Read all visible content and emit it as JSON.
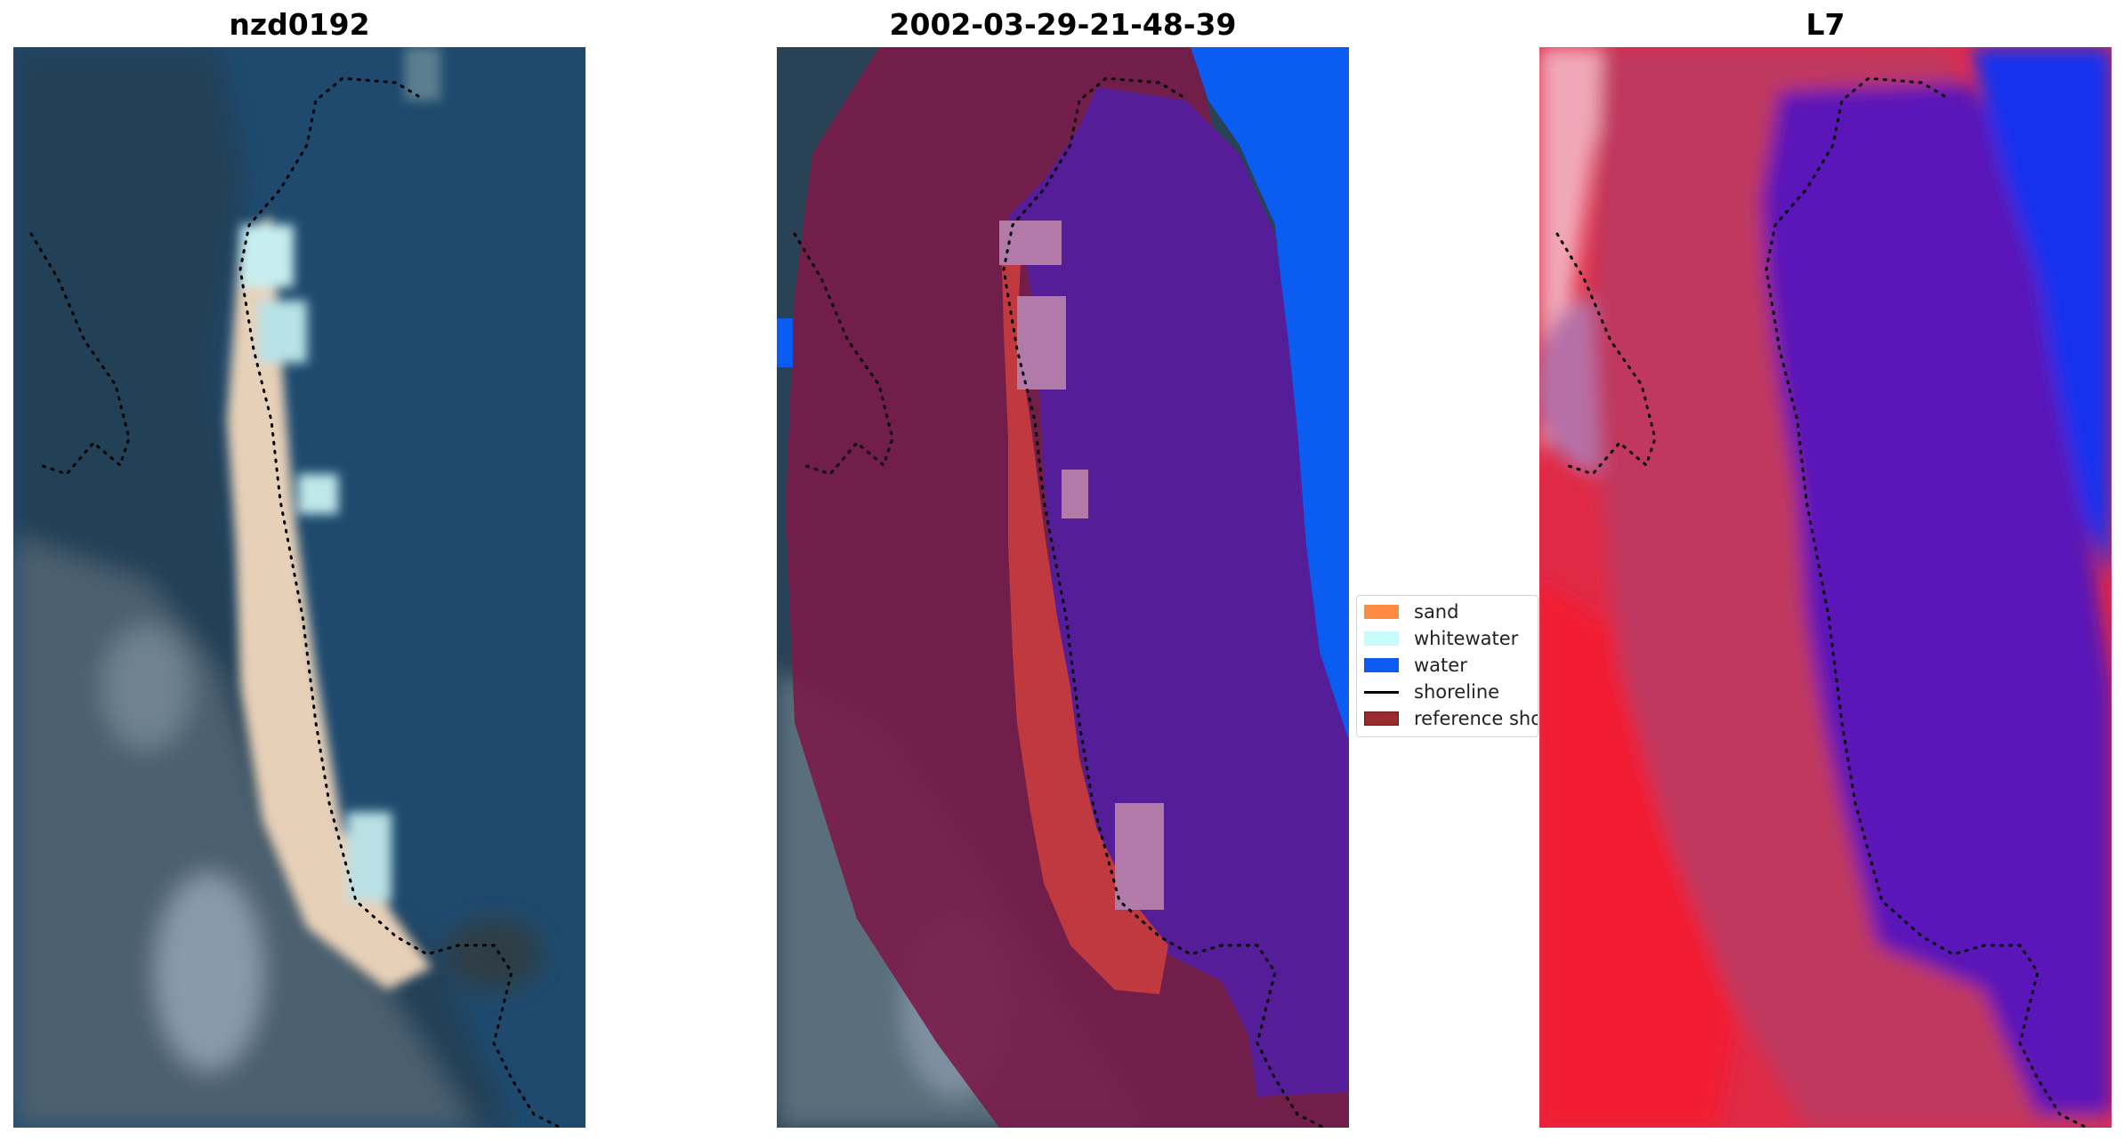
{
  "panels": {
    "left_title": "nzd0192",
    "middle_title": "2002-03-29-21-48-39",
    "right_title": "L7"
  },
  "legend": {
    "items": [
      {
        "label": "sand",
        "kind": "patch",
        "color": "#ff8c42"
      },
      {
        "label": "whitewater",
        "kind": "patch",
        "color": "#c8fbfb"
      },
      {
        "label": "water",
        "kind": "patch",
        "color": "#0b5cf0"
      },
      {
        "label": "shoreline",
        "kind": "line",
        "color": "#000000"
      },
      {
        "label": "reference shoreline",
        "kind": "patch",
        "color": "#9a2a2e"
      }
    ]
  },
  "colors": {
    "ocean": "#1f4a6e",
    "land": "#3d5566",
    "sand": "#e9d3bd",
    "whitewater": "#bfe6ea",
    "class_water": "#0b5cf0",
    "class_sea": "#561d98",
    "class_land_overlay": "#7a1b4a",
    "class_sand": "#c0393f",
    "class_whitewater": "#b17aa8",
    "index_red": "#d5143a",
    "index_blue": "#5a18b8"
  }
}
